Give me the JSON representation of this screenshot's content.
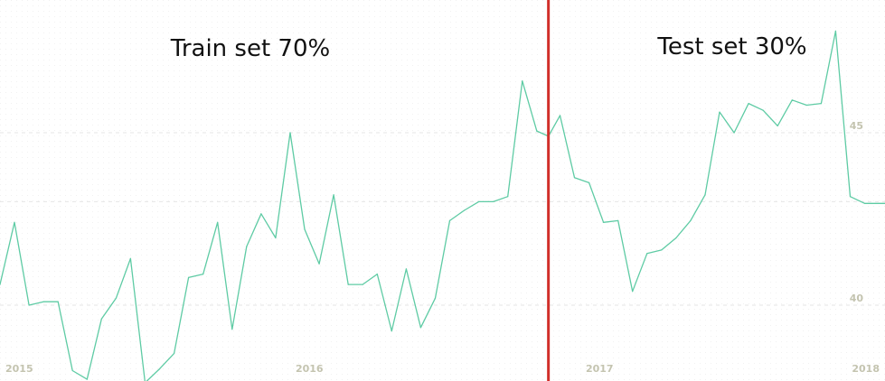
{
  "labels": {
    "train": "Train set 70%",
    "test": "Test set 30%"
  },
  "colors": {
    "line": "#5ecba4",
    "split": "#d12f2a",
    "grid": "#e6e6e6",
    "tick": "#c4c4b0"
  },
  "chart_data": {
    "type": "line",
    "title": "",
    "xlabel": "",
    "ylabel": "",
    "x_ticks": [
      {
        "label": "2015",
        "x": 2015
      },
      {
        "label": "2016",
        "x": 2016
      },
      {
        "label": "2017",
        "x": 2017
      },
      {
        "label": "2018",
        "x": 2018
      }
    ],
    "y_ticks": [
      {
        "label": "40",
        "y": 40
      },
      {
        "label": "45",
        "y": 45
      }
    ],
    "xlim": [
      2015.0,
      2018.05
    ],
    "ylim": [
      37.8,
      48.85
    ],
    "split_x": 2016.89,
    "grid_y": [
      40,
      43,
      45
    ],
    "series": [
      {
        "x": [
          2015.0,
          2015.05,
          2015.1,
          2015.15,
          2015.2,
          2015.25,
          2015.3,
          2015.35,
          2015.4,
          2015.45,
          2015.5,
          2015.55,
          2015.6,
          2015.65,
          2015.7,
          2015.75,
          2015.8,
          2015.85,
          2015.9,
          2015.95,
          2016.0,
          2016.05,
          2016.1,
          2016.15,
          2016.2,
          2016.25,
          2016.3,
          2016.35,
          2016.4,
          2016.45,
          2016.5,
          2016.55,
          2016.6,
          2016.65,
          2016.7,
          2016.75,
          2016.8,
          2016.85,
          2016.89,
          2016.93,
          2016.98,
          2017.03,
          2017.08,
          2017.13,
          2017.18,
          2017.23,
          2017.28,
          2017.33,
          2017.38,
          2017.43,
          2017.48,
          2017.53,
          2017.58,
          2017.63,
          2017.68,
          2017.73,
          2017.78,
          2017.83,
          2017.88,
          2017.93,
          2017.98,
          2018.03,
          2018.05
        ],
        "y": [
          40.6,
          42.4,
          40.0,
          40.1,
          40.1,
          38.1,
          37.85,
          39.6,
          40.2,
          41.35,
          37.75,
          38.15,
          38.6,
          40.8,
          40.9,
          42.4,
          39.3,
          41.7,
          42.65,
          41.95,
          45.0,
          42.2,
          41.2,
          43.2,
          40.6,
          40.6,
          40.9,
          39.25,
          41.05,
          39.35,
          40.2,
          42.45,
          42.75,
          43.0,
          43.0,
          43.15,
          46.5,
          45.05,
          44.9,
          45.5,
          43.7,
          43.55,
          42.4,
          42.45,
          40.4,
          41.5,
          41.6,
          41.95,
          42.45,
          43.2,
          45.6,
          45.0,
          45.85,
          45.65,
          45.2,
          45.95,
          45.8,
          45.85,
          47.95,
          43.15,
          42.95,
          42.95,
          42.95
        ]
      }
    ]
  }
}
